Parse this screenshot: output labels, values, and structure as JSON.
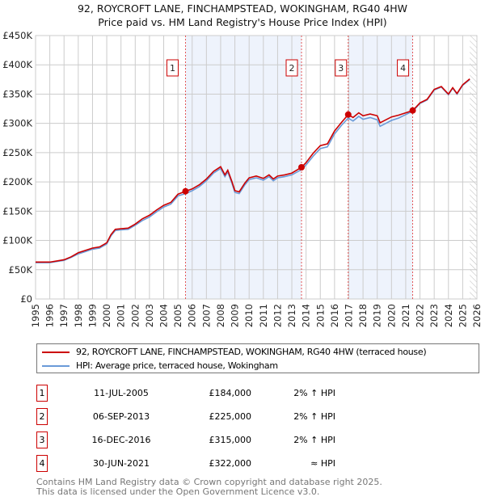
{
  "chart_data": {
    "type": "line",
    "title": "92, ROYCROFT LANE, FINCHAMPSTEAD, WOKINGHAM, RG40 4HW",
    "subtitle": "Price paid vs. HM Land Registry's House Price Index (HPI)",
    "xlim": [
      1995,
      2026
    ],
    "ylim": [
      0,
      450000
    ],
    "xticks": [
      "1995",
      "1996",
      "1997",
      "1998",
      "1999",
      "2000",
      "2001",
      "2002",
      "2003",
      "2004",
      "2005",
      "2006",
      "2007",
      "2008",
      "2009",
      "2010",
      "2011",
      "2012",
      "2013",
      "2014",
      "2015",
      "2016",
      "2017",
      "2018",
      "2019",
      "2020",
      "2021",
      "2022",
      "2023",
      "2024",
      "2025",
      "2026"
    ],
    "yticks": [
      "£0",
      "£50K",
      "£100K",
      "£150K",
      "£200K",
      "£250K",
      "£300K",
      "£350K",
      "£400K",
      "£450K"
    ],
    "grid": true,
    "series": [
      {
        "name": "92, ROYCROFT LANE, FINCHAMPSTEAD, WOKINGHAM, RG40 4HW (terraced house)",
        "color": "#cc0000",
        "x": [
          1995,
          1996,
          1996.5,
          1997,
          1997.5,
          1998,
          1998.5,
          1999,
          1999.5,
          2000,
          2000.3,
          2000.6,
          2001,
          2001.5,
          2002,
          2002.5,
          2003,
          2003.5,
          2004,
          2004.5,
          2005,
          2005.53,
          2006,
          2006.5,
          2007,
          2007.5,
          2008,
          2008.3,
          2008.5,
          2008.8,
          2009,
          2009.3,
          2009.7,
          2010,
          2010.5,
          2011,
          2011.4,
          2011.7,
          2012,
          2012.5,
          2013,
          2013.68,
          2014,
          2014.5,
          2015,
          2015.5,
          2016,
          2016.5,
          2016.96,
          2017.3,
          2017.7,
          2018,
          2018.5,
          2019,
          2019.2,
          2019.6,
          2020,
          2020.5,
          2021,
          2021.5,
          2022,
          2022.5,
          2023,
          2023.5,
          2024,
          2024.3,
          2024.6,
          2025,
          2025.5
        ],
        "y": [
          63000,
          63000,
          65000,
          67000,
          72000,
          79000,
          83000,
          87000,
          89000,
          96000,
          110000,
          119000,
          120000,
          121000,
          128000,
          137000,
          143000,
          152000,
          160000,
          165000,
          179000,
          184000,
          188000,
          195000,
          205000,
          218000,
          226000,
          212000,
          220000,
          200000,
          185000,
          183000,
          198000,
          207000,
          210000,
          206000,
          212000,
          205000,
          210000,
          212000,
          215000,
          225000,
          233000,
          249000,
          262000,
          265000,
          287000,
          302000,
          315000,
          310000,
          318000,
          313000,
          316000,
          313000,
          301000,
          306000,
          311000,
          314000,
          318000,
          322000,
          335000,
          341000,
          358000,
          363000,
          350000,
          361000,
          351000,
          366000,
          376000
        ]
      },
      {
        "name": "HPI: Average price, terraced house, Wokingham",
        "color": "#6a9ad8",
        "x": [
          1995,
          1996,
          1996.5,
          1997,
          1997.5,
          1998,
          1998.5,
          1999,
          1999.5,
          2000,
          2000.3,
          2000.6,
          2001,
          2001.5,
          2002,
          2002.5,
          2003,
          2003.5,
          2004,
          2004.5,
          2005,
          2005.53,
          2006,
          2006.5,
          2007,
          2007.5,
          2008,
          2008.3,
          2008.5,
          2008.8,
          2009,
          2009.3,
          2009.7,
          2010,
          2010.5,
          2011,
          2011.4,
          2011.7,
          2012,
          2012.5,
          2013,
          2013.68,
          2014,
          2014.5,
          2015,
          2015.5,
          2016,
          2016.5,
          2016.96,
          2017.3,
          2017.7,
          2018,
          2018.5,
          2019,
          2019.2,
          2019.6,
          2020,
          2020.5,
          2021,
          2021.5,
          2022,
          2022.5,
          2023,
          2023.5,
          2024,
          2024.3,
          2024.6,
          2025,
          2025.5
        ],
        "y": [
          62000,
          62000,
          64000,
          66000,
          71000,
          77000,
          81000,
          85000,
          87000,
          94000,
          108000,
          117000,
          118000,
          119000,
          126000,
          134000,
          140000,
          149000,
          157000,
          162000,
          176000,
          180000,
          185000,
          192000,
          202000,
          215000,
          223000,
          209000,
          217000,
          197000,
          182000,
          180000,
          195000,
          204000,
          207000,
          203000,
          209000,
          202000,
          207000,
          209000,
          212000,
          221000,
          229000,
          244000,
          257000,
          260000,
          282000,
          297000,
          309000,
          304000,
          312000,
          307000,
          310000,
          306000,
          295000,
          300000,
          305000,
          309000,
          315000,
          321000,
          334000,
          340000,
          357000,
          362000,
          349000,
          360000,
          350000,
          365000,
          375000
        ]
      }
    ],
    "sales": [
      {
        "label": "1",
        "x": 2005.53,
        "y": 184000,
        "date": "11-JUL-2005",
        "price": "£184,000",
        "hpi": "2% ↑ HPI"
      },
      {
        "label": "2",
        "x": 2013.68,
        "y": 225000,
        "date": "06-SEP-2013",
        "price": "£225,000",
        "hpi": "2% ↑ HPI"
      },
      {
        "label": "3",
        "x": 2016.96,
        "y": 315000,
        "date": "16-DEC-2016",
        "price": "£315,000",
        "hpi": "2% ↑ HPI"
      },
      {
        "label": "4",
        "x": 2021.49,
        "y": 322000,
        "date": "30-JUN-2021",
        "price": "£322,000",
        "hpi": "≈ HPI"
      }
    ],
    "shaded_ranges": [
      [
        2005.53,
        2013.68
      ],
      [
        2016.96,
        2021.49
      ]
    ],
    "forecast_from": 2025.5
  },
  "footer": {
    "line1": "Contains HM Land Registry data © Crown copyright and database right 2025.",
    "line2": "This data is licensed under the Open Government Licence v3.0."
  }
}
